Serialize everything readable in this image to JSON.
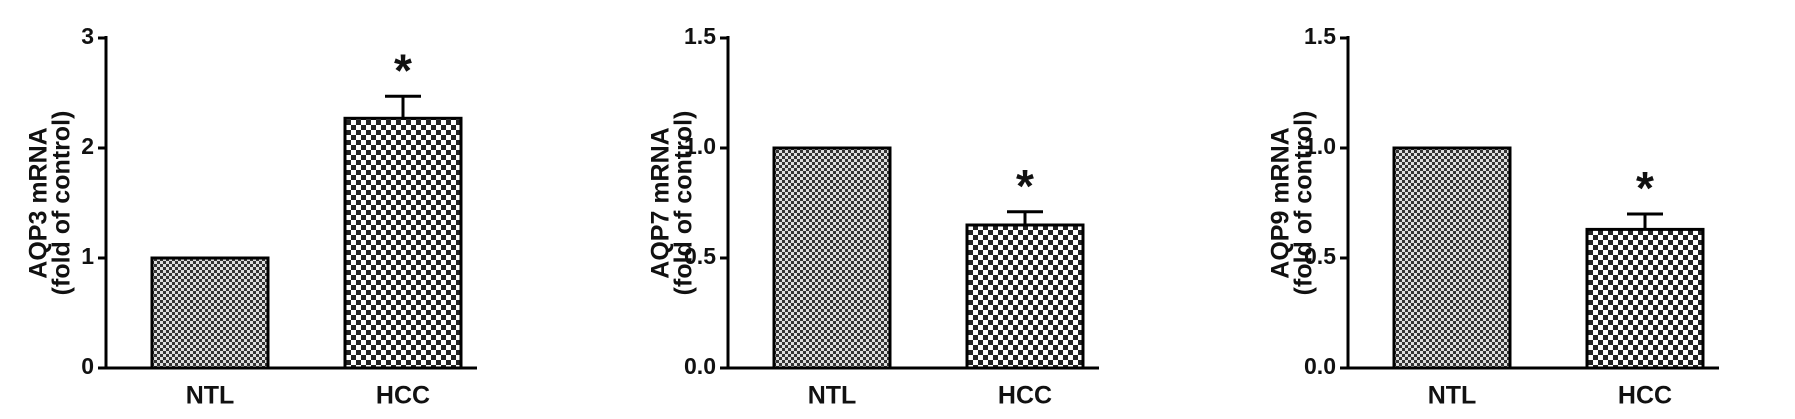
{
  "chart_data": [
    {
      "type": "bar",
      "ylabel": [
        "AQP3 mRNA",
        "(fold of control)"
      ],
      "categories": [
        "NTL",
        "HCC"
      ],
      "values": [
        1.0,
        2.27
      ],
      "errors": [
        null,
        0.2
      ],
      "significance": [
        null,
        "*"
      ],
      "ylim": [
        0,
        3
      ],
      "yticks": [
        0,
        1,
        2,
        3
      ]
    },
    {
      "type": "bar",
      "ylabel": [
        "AQP7 mRNA",
        "(fold of control)"
      ],
      "categories": [
        "NTL",
        "HCC"
      ],
      "values": [
        1.0,
        0.65
      ],
      "errors": [
        null,
        0.06
      ],
      "significance": [
        null,
        "*"
      ],
      "ylim": [
        0,
        1.5
      ],
      "yticks": [
        {
          "value": 0,
          "label": "0.0"
        },
        {
          "value": 0.5,
          "label": "0.5"
        },
        {
          "value": 1,
          "label": "1.0"
        },
        1.5
      ]
    },
    {
      "type": "bar",
      "ylabel": [
        "AQP9 mRNA",
        "(fold of control)"
      ],
      "categories": [
        "NTL",
        "HCC"
      ],
      "values": [
        1.0,
        0.63
      ],
      "errors": [
        null,
        0.07
      ],
      "significance": [
        null,
        "*"
      ],
      "ylim": [
        0,
        1.5
      ],
      "yticks": [
        {
          "value": 0,
          "label": "0.0"
        },
        {
          "value": 0.5,
          "label": "0.5"
        },
        {
          "value": 1,
          "label": "1.0"
        },
        1.5
      ]
    }
  ]
}
